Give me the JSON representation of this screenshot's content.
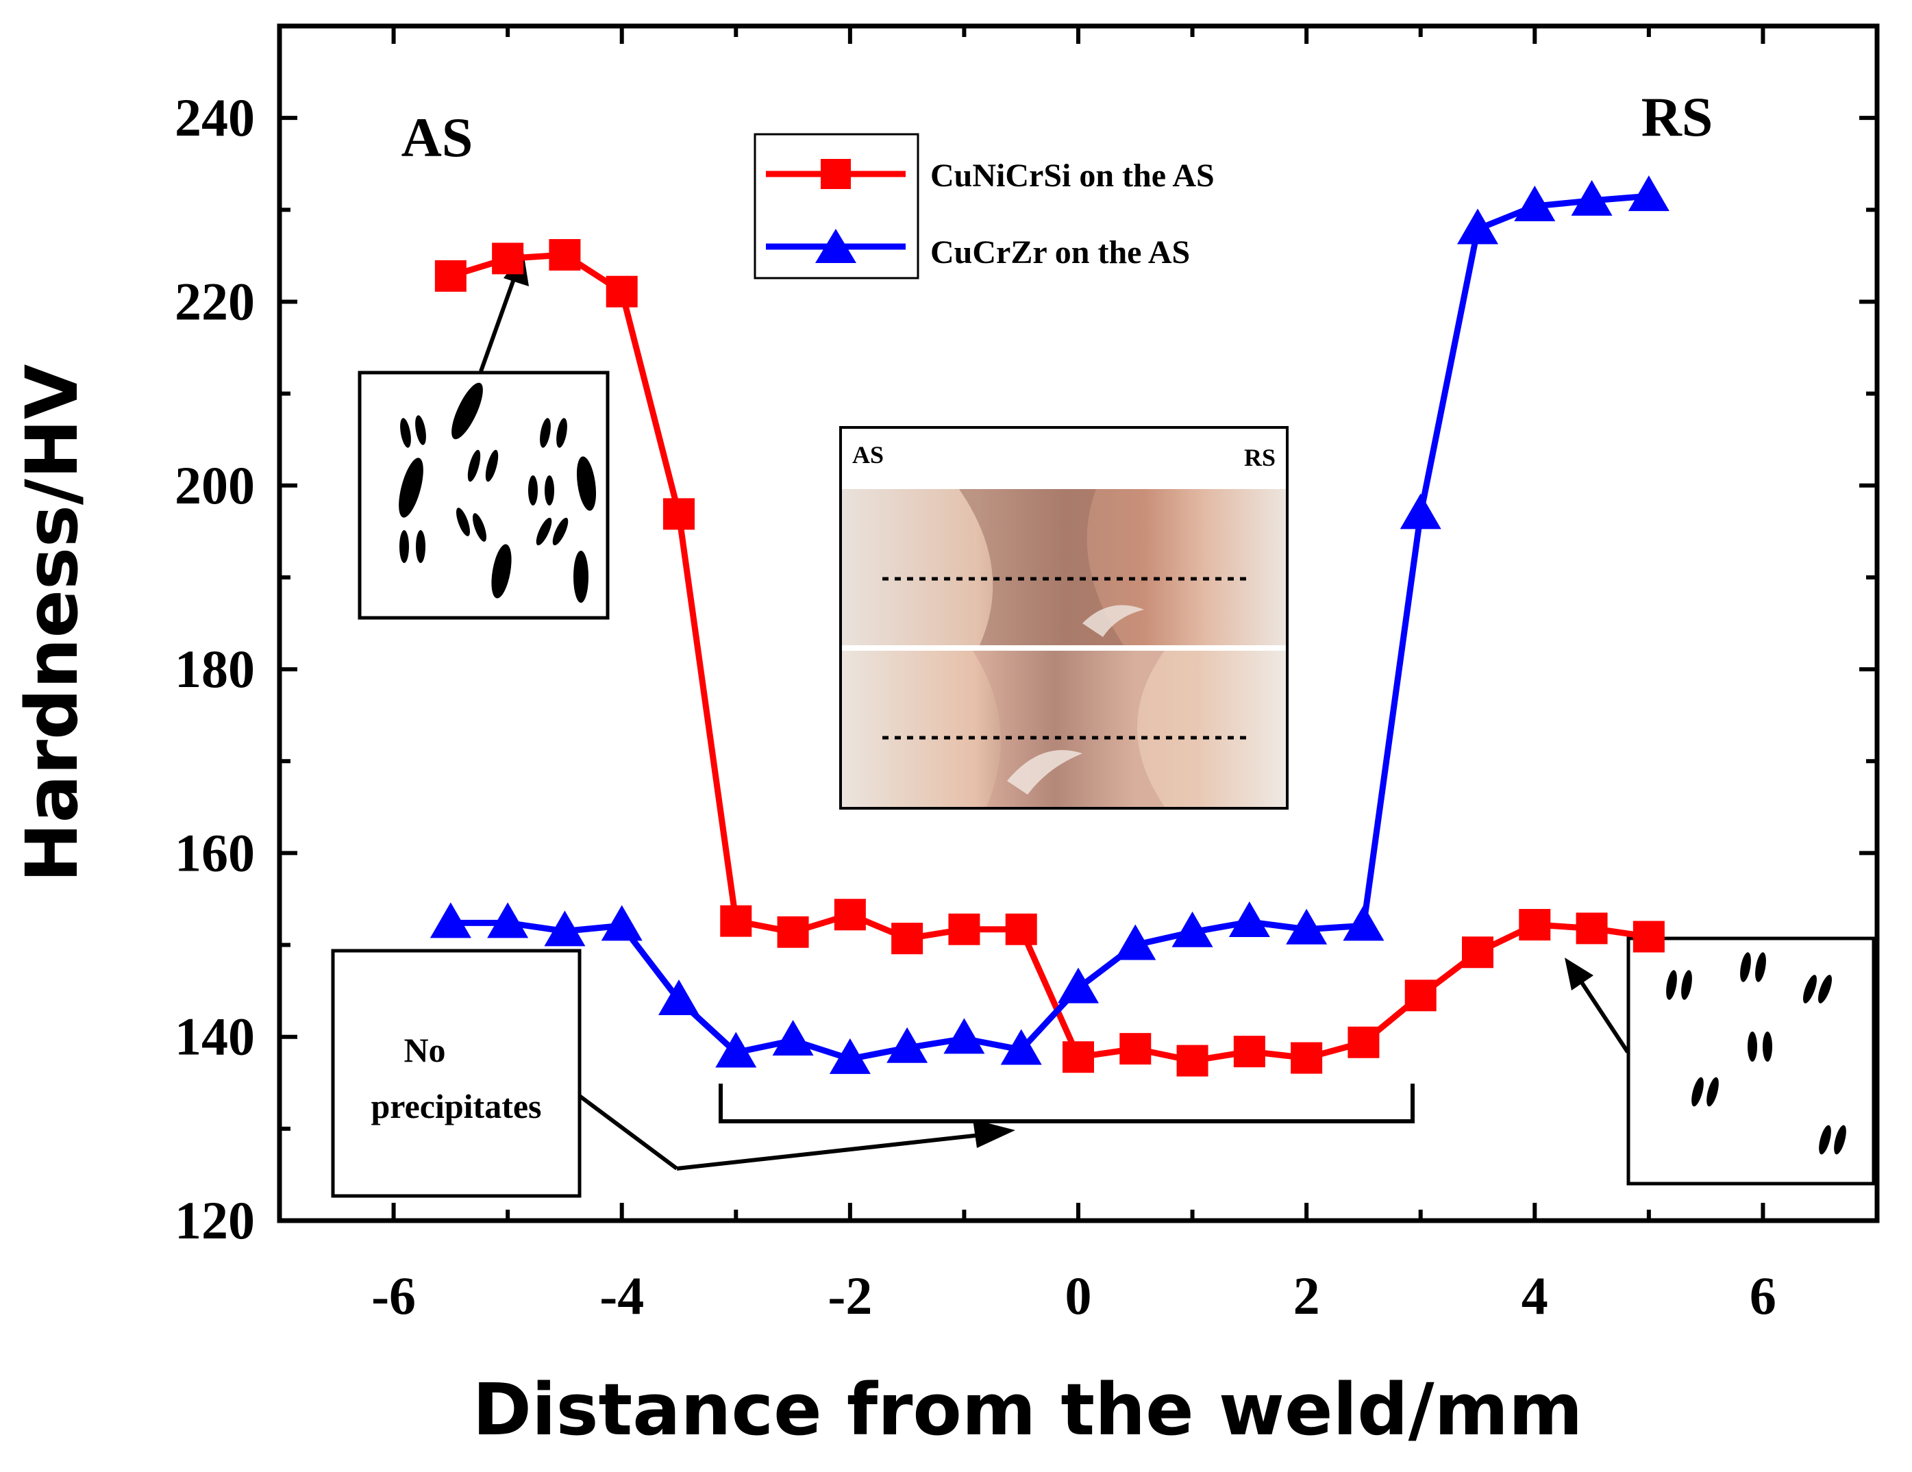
{
  "chart_data": {
    "type": "line",
    "xlabel": "Distance from the weld/mm",
    "ylabel": "Hardness/HV",
    "xlim": [
      -7,
      7
    ],
    "ylim": [
      120,
      250
    ],
    "xticks": [
      -6,
      -4,
      -2,
      0,
      2,
      4,
      6
    ],
    "yticks": [
      120,
      140,
      160,
      180,
      200,
      220,
      240
    ],
    "x": [
      -5.5,
      -5,
      -4.5,
      -4,
      -3.5,
      -3,
      -2.5,
      -2,
      -1.5,
      -1,
      -0.5,
      0,
      0.5,
      1,
      1.5,
      2,
      2.5,
      3,
      3.5,
      4,
      4.5,
      5
    ],
    "series": [
      {
        "name": "CuNiCrSi on the AS",
        "color": "#ff0000",
        "marker": "square",
        "values": [
          222.8,
          224.7,
          225.1,
          221.1,
          196.9,
          152.6,
          151.4,
          153.3,
          150.7,
          151.7,
          151.7,
          137.8,
          138.7,
          137.4,
          138.4,
          137.7,
          139.4,
          144.5,
          149.2,
          152.2,
          151.8,
          150.9
        ]
      },
      {
        "name": "CuCrZr on the AS",
        "color": "#0000ff",
        "marker": "triangle",
        "values": [
          152.4,
          152.4,
          151.5,
          152.1,
          144.0,
          138.3,
          139.6,
          137.6,
          138.8,
          139.8,
          138.6,
          145.3,
          150.0,
          151.4,
          152.5,
          151.7,
          152.1,
          196.9,
          227.9,
          230.4,
          231.0,
          231.5
        ]
      }
    ],
    "legend_position": "top-center",
    "annotations": {
      "left_side": "AS",
      "right_side": "RS",
      "no_precipitates_line1": "No",
      "no_precipitates_line2": "precipitates",
      "inset_left": "AS",
      "inset_right": "RS"
    }
  },
  "colors": {
    "red_series": "#ff0000",
    "blue_series": "#0000ff"
  }
}
